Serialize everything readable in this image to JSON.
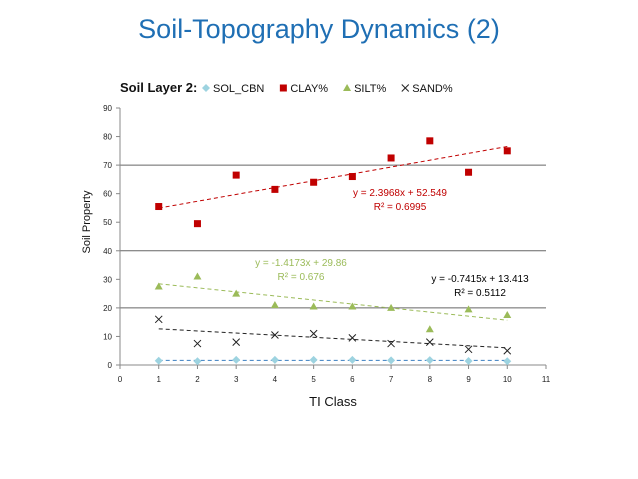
{
  "slide": {
    "title": "Soil-Topography Dynamics (2)"
  },
  "chart_data": {
    "type": "scatter",
    "title": "Soil Layer 2:",
    "xlabel": "TI Class",
    "ylabel": "Soil Property",
    "xlim": [
      0,
      11
    ],
    "ylim": [
      0,
      90
    ],
    "x_ticks": [
      0,
      1,
      2,
      3,
      4,
      5,
      6,
      7,
      8,
      9,
      10,
      11
    ],
    "y_ticks": [
      0,
      10,
      20,
      30,
      40,
      50,
      60,
      70,
      80,
      90
    ],
    "grid": "horizontal major lines at 20, 40, 70",
    "legend_position": "top",
    "series": [
      {
        "name": "SOL_CBN",
        "marker": "diamond",
        "color": "#9DD3E0",
        "x": [
          1,
          2,
          3,
          4,
          5,
          6,
          7,
          8,
          9,
          10
        ],
        "y": [
          1.5,
          1.3,
          1.8,
          1.8,
          1.8,
          1.8,
          1.6,
          1.7,
          1.4,
          1.3
        ],
        "trendline": {
          "slope": 0.0,
          "intercept": 1.6,
          "color": "#3A7FC1"
        }
      },
      {
        "name": "CLAY%",
        "marker": "square",
        "color": "#C00000",
        "x": [
          1,
          2,
          3,
          4,
          5,
          6,
          7,
          8,
          9,
          10
        ],
        "y": [
          55.5,
          49.5,
          66.5,
          61.5,
          64,
          66,
          72.5,
          78.5,
          67.5,
          75
        ],
        "trendline": {
          "slope": 2.3968,
          "intercept": 52.549,
          "color": "#C00000"
        }
      },
      {
        "name": "SILT%",
        "marker": "triangle",
        "color": "#9BBB59",
        "x": [
          1,
          2,
          3,
          4,
          5,
          6,
          7,
          8,
          9,
          10
        ],
        "y": [
          27.5,
          31,
          25,
          21,
          20.5,
          20.5,
          20,
          12.5,
          19.5,
          17.5
        ],
        "trendline": {
          "slope": -1.4173,
          "intercept": 29.86,
          "color": "#9BBB59"
        }
      },
      {
        "name": "SAND%",
        "marker": "x",
        "color": "#222222",
        "x": [
          1,
          2,
          3,
          4,
          5,
          6,
          7,
          8,
          9,
          10
        ],
        "y": [
          16,
          7.5,
          8,
          10.5,
          11,
          9.5,
          7.5,
          8,
          5.5,
          5
        ],
        "trendline": {
          "slope": -0.7415,
          "intercept": 13.413,
          "color": "#222222"
        }
      }
    ],
    "annotations": [
      {
        "series": "CLAY%",
        "equation": "y = 2.3968x + 52.549",
        "r2": "R² = 0.6995",
        "color": "#C00000"
      },
      {
        "series": "SILT%",
        "equation": "y = -1.4173x + 29.86",
        "r2": "R² = 0.676",
        "color": "#9BBB59"
      },
      {
        "series": "SAND%",
        "equation": "y = -0.7415x + 13.413",
        "r2": "R² = 0.5112",
        "color": "#000000"
      }
    ]
  }
}
